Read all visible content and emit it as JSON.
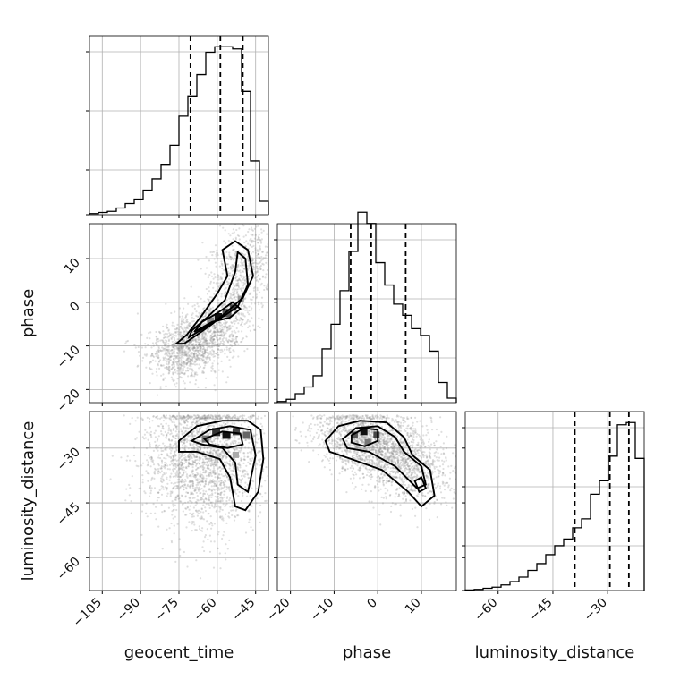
{
  "chart_data": {
    "type": "corner",
    "grid": true,
    "parameters": [
      "geocent_time",
      "phase",
      "luminosity_distance"
    ],
    "ranges": {
      "geocent_time": [
        -110,
        -40
      ],
      "phase": [
        -23,
        18
      ],
      "luminosity_distance": [
        -69,
        -20
      ]
    },
    "ticks": {
      "geocent_time": [
        -105,
        -90,
        -75,
        -60,
        -45
      ],
      "phase_x": [
        -20,
        -10,
        0,
        10
      ],
      "phase_y": [
        10,
        0,
        -10,
        -20
      ],
      "luminosity_distance": [
        -60,
        -45,
        -30
      ]
    },
    "tick_labels": {
      "geocent_time": [
        "−105",
        "−90",
        "−75",
        "−60",
        "−45"
      ],
      "phase_x": [
        "−20",
        "−10",
        "0",
        "10"
      ],
      "phase_y": [
        "10",
        "0",
        "−10",
        "−20"
      ],
      "luminosity_distance_x": [
        "−60",
        "−45",
        "−30"
      ],
      "luminosity_distance_y": [
        "−30",
        "−45",
        "−60"
      ]
    },
    "axis_labels": {
      "x": [
        "geocent_time",
        "phase",
        "luminosity_distance"
      ],
      "y": [
        "phase",
        "luminosity_distance"
      ]
    },
    "histograms": {
      "geocent_time": {
        "bin_edges": [
          -110,
          -106.5,
          -103,
          -99.5,
          -96,
          -92.5,
          -89,
          -85.5,
          -82,
          -78.5,
          -75,
          -71.5,
          -68,
          -64.5,
          -61,
          -57.5,
          -54,
          -50.5,
          -47,
          -43.5,
          -40
        ],
        "counts": [
          1,
          2,
          3,
          6,
          10,
          14,
          22,
          32,
          45,
          62,
          88,
          106,
          125,
          145,
          150,
          150,
          148,
          110,
          48,
          12
        ],
        "quantiles": [
          -70.5,
          -58.8,
          -50.0
        ]
      },
      "phase": {
        "bin_edges": [
          -23,
          -20.95,
          -18.9,
          -16.85,
          -14.8,
          -12.75,
          -10.7,
          -8.65,
          -6.6,
          -4.55,
          -2.5,
          -0.45,
          1.6,
          3.65,
          5.7,
          7.75,
          9.8,
          11.85,
          13.9,
          15.95,
          18
        ],
        "counts": [
          1,
          3,
          8,
          14,
          24,
          48,
          70,
          100,
          135,
          170,
          160,
          125,
          105,
          88,
          78,
          66,
          60,
          46,
          18,
          4
        ],
        "quantiles": [
          -6.2,
          -1.5,
          6.4
        ]
      },
      "luminosity_distance": {
        "bin_edges": [
          -69,
          -66.55,
          -64.1,
          -61.65,
          -59.2,
          -56.75,
          -54.3,
          -51.85,
          -49.4,
          -46.95,
          -44.5,
          -42.05,
          -39.6,
          -37.15,
          -34.7,
          -32.25,
          -29.8,
          -27.35,
          -24.9,
          -22.45,
          -20
        ],
        "counts": [
          0.5,
          1,
          2,
          3,
          5,
          8,
          12,
          18,
          24,
          32,
          40,
          46,
          56,
          64,
          86,
          98,
          120,
          148,
          150,
          118
        ],
        "quantiles": [
          -39.0,
          -29.4,
          -24.2
        ]
      }
    }
  }
}
